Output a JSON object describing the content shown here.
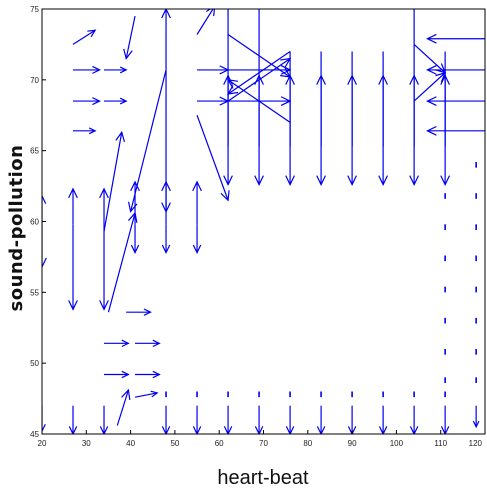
{
  "chart_data": {
    "type": "quiver",
    "title": "",
    "xlabel": "heart-beat",
    "ylabel": "sound-pollution",
    "xlim": [
      20,
      120
    ],
    "ylim": [
      45,
      75
    ],
    "xticks": [
      "20",
      "30",
      "40",
      "50",
      "60",
      "70",
      "80",
      "90",
      "100",
      "110",
      "120"
    ],
    "yticks": [
      "45",
      "50",
      "55",
      "60",
      "65",
      "70",
      "75"
    ],
    "grid": false,
    "arrow_color": "#0000ee",
    "arrows": [
      {
        "x": 27,
        "y": 72.5,
        "u": 5,
        "v": 1
      },
      {
        "x": 27,
        "y": 70.7,
        "u": 6,
        "v": 0
      },
      {
        "x": 27,
        "y": 68.5,
        "u": 6,
        "v": 0
      },
      {
        "x": 27,
        "y": 66.4,
        "u": 5,
        "v": 0
      },
      {
        "x": 34,
        "y": 70.7,
        "u": 5,
        "v": 0
      },
      {
        "x": 34,
        "y": 68.5,
        "u": 5,
        "v": 0
      },
      {
        "x": 34,
        "y": 59.8,
        "u": 0,
        "v": 2.5
      },
      {
        "x": 34,
        "y": 59.8,
        "u": 0,
        "v": -6
      },
      {
        "x": 34,
        "y": 59.3,
        "u": 4,
        "v": 7
      },
      {
        "x": 35,
        "y": 53.6,
        "u": 6,
        "v": 7
      },
      {
        "x": 27,
        "y": 59.8,
        "u": 0,
        "v": 2.5
      },
      {
        "x": 27,
        "y": 59.8,
        "u": 0,
        "v": -6
      },
      {
        "x": 20,
        "y": 59.8,
        "u": 0,
        "v": 2
      },
      {
        "x": 20,
        "y": 59.8,
        "u": 0,
        "v": -3
      },
      {
        "x": 41,
        "y": 59.8,
        "u": 0,
        "v": 3
      },
      {
        "x": 41,
        "y": 59.8,
        "u": 0,
        "v": -2
      },
      {
        "x": 48,
        "y": 59.8,
        "u": 0,
        "v": 3
      },
      {
        "x": 48,
        "y": 59.8,
        "u": 0,
        "v": -2
      },
      {
        "x": 55,
        "y": 59.8,
        "u": 0,
        "v": 3
      },
      {
        "x": 55,
        "y": 59.8,
        "u": 0,
        "v": -2
      },
      {
        "x": 41,
        "y": 74.5,
        "u": -2,
        "v": -3
      },
      {
        "x": 48,
        "y": 70.7,
        "u": 0,
        "v": 4.3
      },
      {
        "x": 48,
        "y": 70.7,
        "u": 0,
        "v": -10
      },
      {
        "x": 48,
        "y": 70.7,
        "u": -8,
        "v": -10
      },
      {
        "x": 55,
        "y": 73.2,
        "u": 4,
        "v": 2
      },
      {
        "x": 55,
        "y": 67.5,
        "u": 7,
        "v": -6
      },
      {
        "x": 55,
        "y": 70.7,
        "u": 7,
        "v": 0
      },
      {
        "x": 55,
        "y": 68.5,
        "u": 7,
        "v": 0
      },
      {
        "x": 62,
        "y": 70.7,
        "u": 14,
        "v": 0
      },
      {
        "x": 62,
        "y": 68.5,
        "u": 14,
        "v": 0
      },
      {
        "x": 62,
        "y": 73.2,
        "u": 14,
        "v": -3
      },
      {
        "x": 62,
        "y": 68.5,
        "u": 14,
        "v": 3
      },
      {
        "x": 76,
        "y": 72.0,
        "u": -14,
        "v": -3
      },
      {
        "x": 76,
        "y": 67.0,
        "u": -14,
        "v": 3
      },
      {
        "x": 62,
        "y": 75,
        "u": 0,
        "v": -12.4
      },
      {
        "x": 69,
        "y": 75,
        "u": 0,
        "v": -12.4
      },
      {
        "x": 76,
        "y": 72,
        "u": 0,
        "v": -9.4
      },
      {
        "x": 83,
        "y": 72,
        "u": 0,
        "v": -9.4
      },
      {
        "x": 90,
        "y": 72,
        "u": 0,
        "v": -9.4
      },
      {
        "x": 97,
        "y": 72,
        "u": 0,
        "v": -9.4
      },
      {
        "x": 104,
        "y": 75,
        "u": 0,
        "v": -12.4
      },
      {
        "x": 111,
        "y": 72,
        "u": 0,
        "v": -9.4
      },
      {
        "x": 62,
        "y": 65.3,
        "u": 0,
        "v": 5
      },
      {
        "x": 69,
        "y": 65.3,
        "u": 0,
        "v": 5
      },
      {
        "x": 76,
        "y": 65.3,
        "u": 0,
        "v": 5
      },
      {
        "x": 83,
        "y": 65.3,
        "u": 0,
        "v": 5
      },
      {
        "x": 90,
        "y": 65.3,
        "u": 0,
        "v": 5
      },
      {
        "x": 97,
        "y": 65.3,
        "u": 0,
        "v": 5
      },
      {
        "x": 104,
        "y": 65.3,
        "u": 0,
        "v": 5
      },
      {
        "x": 111,
        "y": 65.3,
        "u": 0,
        "v": 5
      },
      {
        "x": 120,
        "y": 72.9,
        "u": -13,
        "v": 0
      },
      {
        "x": 120,
        "y": 70.7,
        "u": -13,
        "v": 0
      },
      {
        "x": 120,
        "y": 68.5,
        "u": -13,
        "v": 0
      },
      {
        "x": 120,
        "y": 66.4,
        "u": -13,
        "v": 0
      },
      {
        "x": 104,
        "y": 72.5,
        "u": 7,
        "v": -2
      },
      {
        "x": 104,
        "y": 68.5,
        "u": 7,
        "v": 2
      },
      {
        "x": 39,
        "y": 53.6,
        "u": 5.5,
        "v": 0
      },
      {
        "x": 34,
        "y": 51.4,
        "u": 5.5,
        "v": 0
      },
      {
        "x": 41,
        "y": 51.4,
        "u": 5.5,
        "v": 0
      },
      {
        "x": 34,
        "y": 49.2,
        "u": 5.5,
        "v": 0
      },
      {
        "x": 41,
        "y": 49.2,
        "u": 5.5,
        "v": 0
      },
      {
        "x": 41,
        "y": 47.6,
        "u": 5,
        "v": 0.3
      },
      {
        "x": 20,
        "y": 47,
        "u": 0,
        "v": -1.8
      },
      {
        "x": 27,
        "y": 47,
        "u": 0,
        "v": -2
      },
      {
        "x": 34,
        "y": 47,
        "u": 0,
        "v": -2
      },
      {
        "x": 37,
        "y": 45.6,
        "u": 2.5,
        "v": 2.5
      },
      {
        "x": 48,
        "y": 47,
        "u": 0,
        "v": -2
      },
      {
        "x": 55,
        "y": 47,
        "u": 0,
        "v": -2
      },
      {
        "x": 62,
        "y": 47,
        "u": 0,
        "v": -2
      },
      {
        "x": 69,
        "y": 47,
        "u": 0,
        "v": -2
      },
      {
        "x": 76,
        "y": 47,
        "u": 0,
        "v": -2
      },
      {
        "x": 83,
        "y": 47,
        "u": 0,
        "v": -2
      },
      {
        "x": 90,
        "y": 47,
        "u": 0,
        "v": -2
      },
      {
        "x": 97,
        "y": 47,
        "u": 0,
        "v": -2
      },
      {
        "x": 104,
        "y": 47,
        "u": 0,
        "v": -2
      },
      {
        "x": 111,
        "y": 47,
        "u": 0,
        "v": -2
      },
      {
        "x": 118,
        "y": 47,
        "u": 0,
        "v": -1.5
      },
      {
        "x": 48,
        "y": 47.6,
        "u": 0,
        "v": 0.4
      },
      {
        "x": 55,
        "y": 47.6,
        "u": 0,
        "v": 0.4
      },
      {
        "x": 62,
        "y": 47.6,
        "u": 0,
        "v": 0.4
      },
      {
        "x": 69,
        "y": 47.6,
        "u": 0,
        "v": 0.4
      },
      {
        "x": 76,
        "y": 47.6,
        "u": 0,
        "v": 0.4
      },
      {
        "x": 83,
        "y": 47.6,
        "u": 0,
        "v": 0.4
      },
      {
        "x": 90,
        "y": 47.6,
        "u": 0,
        "v": 0.4
      },
      {
        "x": 97,
        "y": 47.6,
        "u": 0,
        "v": 0.4
      },
      {
        "x": 104,
        "y": 47.6,
        "u": 0,
        "v": 0.4
      },
      {
        "x": 111,
        "y": 47.6,
        "u": 0,
        "v": 0.4
      },
      {
        "x": 111,
        "y": 62.0,
        "u": 0,
        "v": -0.4
      },
      {
        "x": 111,
        "y": 59.8,
        "u": 0,
        "v": -0.4
      },
      {
        "x": 111,
        "y": 57.6,
        "u": 0,
        "v": -0.4
      },
      {
        "x": 111,
        "y": 55.4,
        "u": 0,
        "v": -0.4
      },
      {
        "x": 111,
        "y": 53.2,
        "u": 0,
        "v": -0.4
      },
      {
        "x": 111,
        "y": 51.0,
        "u": 0,
        "v": -0.4
      },
      {
        "x": 111,
        "y": 49.0,
        "u": 0,
        "v": -0.4
      },
      {
        "x": 118,
        "y": 64.2,
        "u": 0,
        "v": -0.4
      },
      {
        "x": 118,
        "y": 62.0,
        "u": 0,
        "v": -0.4
      },
      {
        "x": 118,
        "y": 59.8,
        "u": 0,
        "v": -0.4
      },
      {
        "x": 118,
        "y": 57.6,
        "u": 0,
        "v": -0.4
      },
      {
        "x": 118,
        "y": 55.4,
        "u": 0,
        "v": -0.4
      },
      {
        "x": 118,
        "y": 53.2,
        "u": 0,
        "v": -0.4
      },
      {
        "x": 118,
        "y": 51.0,
        "u": 0,
        "v": -0.4
      },
      {
        "x": 118,
        "y": 49.0,
        "u": 0,
        "v": -0.4
      }
    ]
  }
}
